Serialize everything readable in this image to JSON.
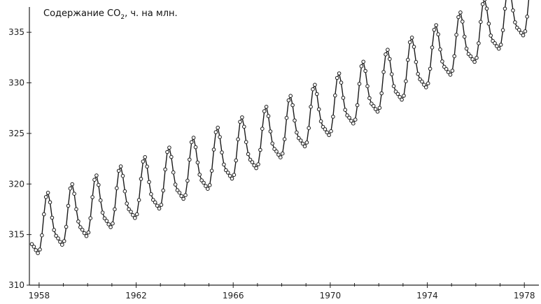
{
  "chart_data": {
    "type": "line",
    "title_prefix": "Содержание CO",
    "title_subscript": "2",
    "title_suffix": ", ч. на млн.",
    "xlabel": "",
    "ylabel": "",
    "xlim": [
      1957.6,
      1978.6
    ],
    "ylim": [
      310,
      337.5
    ],
    "x_ticks": [
      1958,
      1962,
      1966,
      1970,
      1974,
      1978
    ],
    "x_tick_labels": [
      "1958",
      "1962",
      "1966",
      "1970",
      "1974",
      "1978"
    ],
    "x_minor_ticks": [
      1959,
      1960,
      1961,
      1963,
      1964,
      1965,
      1967,
      1968,
      1969,
      1971,
      1972,
      1973,
      1975,
      1976,
      1977
    ],
    "y_ticks": [
      310,
      315,
      320,
      325,
      330,
      335
    ],
    "y_tick_labels": [
      "310",
      "315",
      "320",
      "325",
      "330",
      "335"
    ],
    "grid": false,
    "series": [
      {
        "trend_start": 315.3,
        "trend_per_year": 0.81,
        "trend_curvature": 0.013,
        "seasonal_amplitude": 3.1,
        "peak_phase": 0.37,
        "points_per_year": 12,
        "x_start": 1957.7,
        "x_end": 1978.45
      }
    ]
  }
}
